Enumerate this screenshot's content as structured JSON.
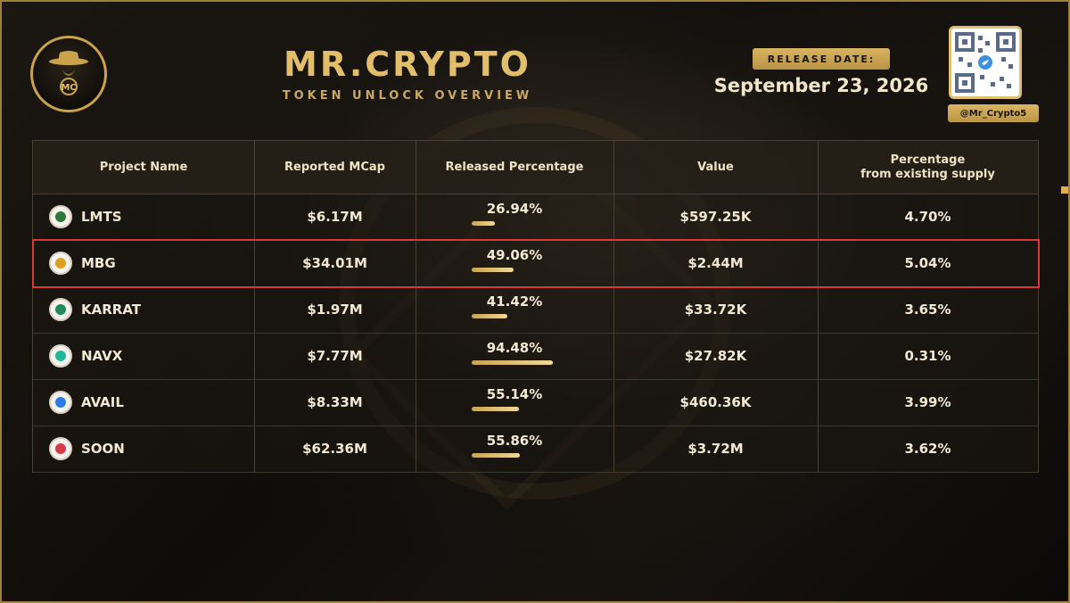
{
  "header": {
    "title": "MR.CRYPTO",
    "subtitle": "TOKEN UNLOCK OVERVIEW",
    "release_label": "RELEASE DATE:",
    "release_date": "September 23, 2026",
    "handle": "@Mr_Crypto5",
    "logo_text": "MC"
  },
  "colors": {
    "gold": "#e2be6a",
    "highlight_border": "#d8383a",
    "background": "#0e0c0a"
  },
  "table": {
    "columns": [
      "Project Name",
      "Reported MCap",
      "Released Percentage",
      "Value",
      "Percentage\nfrom existing supply"
    ],
    "rows": [
      {
        "name": "LMTS",
        "mcap": "$6.17M",
        "released": "26.94%",
        "released_pct": 26.94,
        "value": "$597.25K",
        "supply": "4.70%",
        "icon": "lmts-icon",
        "icon_color": "#2c7a3a"
      },
      {
        "name": "MBG",
        "mcap": "$34.01M",
        "released": "49.06%",
        "released_pct": 49.06,
        "value": "$2.44M",
        "supply": "5.04%",
        "icon": "mbg-icon",
        "icon_color": "#e0a020",
        "highlighted": true
      },
      {
        "name": "KARRAT",
        "mcap": "$1.97M",
        "released": "41.42%",
        "released_pct": 41.42,
        "value": "$33.72K",
        "supply": "3.65%",
        "icon": "karrat-icon",
        "icon_color": "#1f8a5a"
      },
      {
        "name": "NAVX",
        "mcap": "$7.77M",
        "released": "94.48%",
        "released_pct": 94.48,
        "value": "$27.82K",
        "supply": "0.31%",
        "icon": "navx-icon",
        "icon_color": "#1fb89a"
      },
      {
        "name": "AVAIL",
        "mcap": "$8.33M",
        "released": "55.14%",
        "released_pct": 55.14,
        "value": "$460.36K",
        "supply": "3.99%",
        "icon": "avail-icon",
        "icon_color": "#2d7be6"
      },
      {
        "name": "SOON",
        "mcap": "$62.36M",
        "released": "55.86%",
        "released_pct": 55.86,
        "value": "$3.72M",
        "supply": "3.62%",
        "icon": "soon-icon",
        "icon_color": "#d83a4a"
      }
    ]
  }
}
